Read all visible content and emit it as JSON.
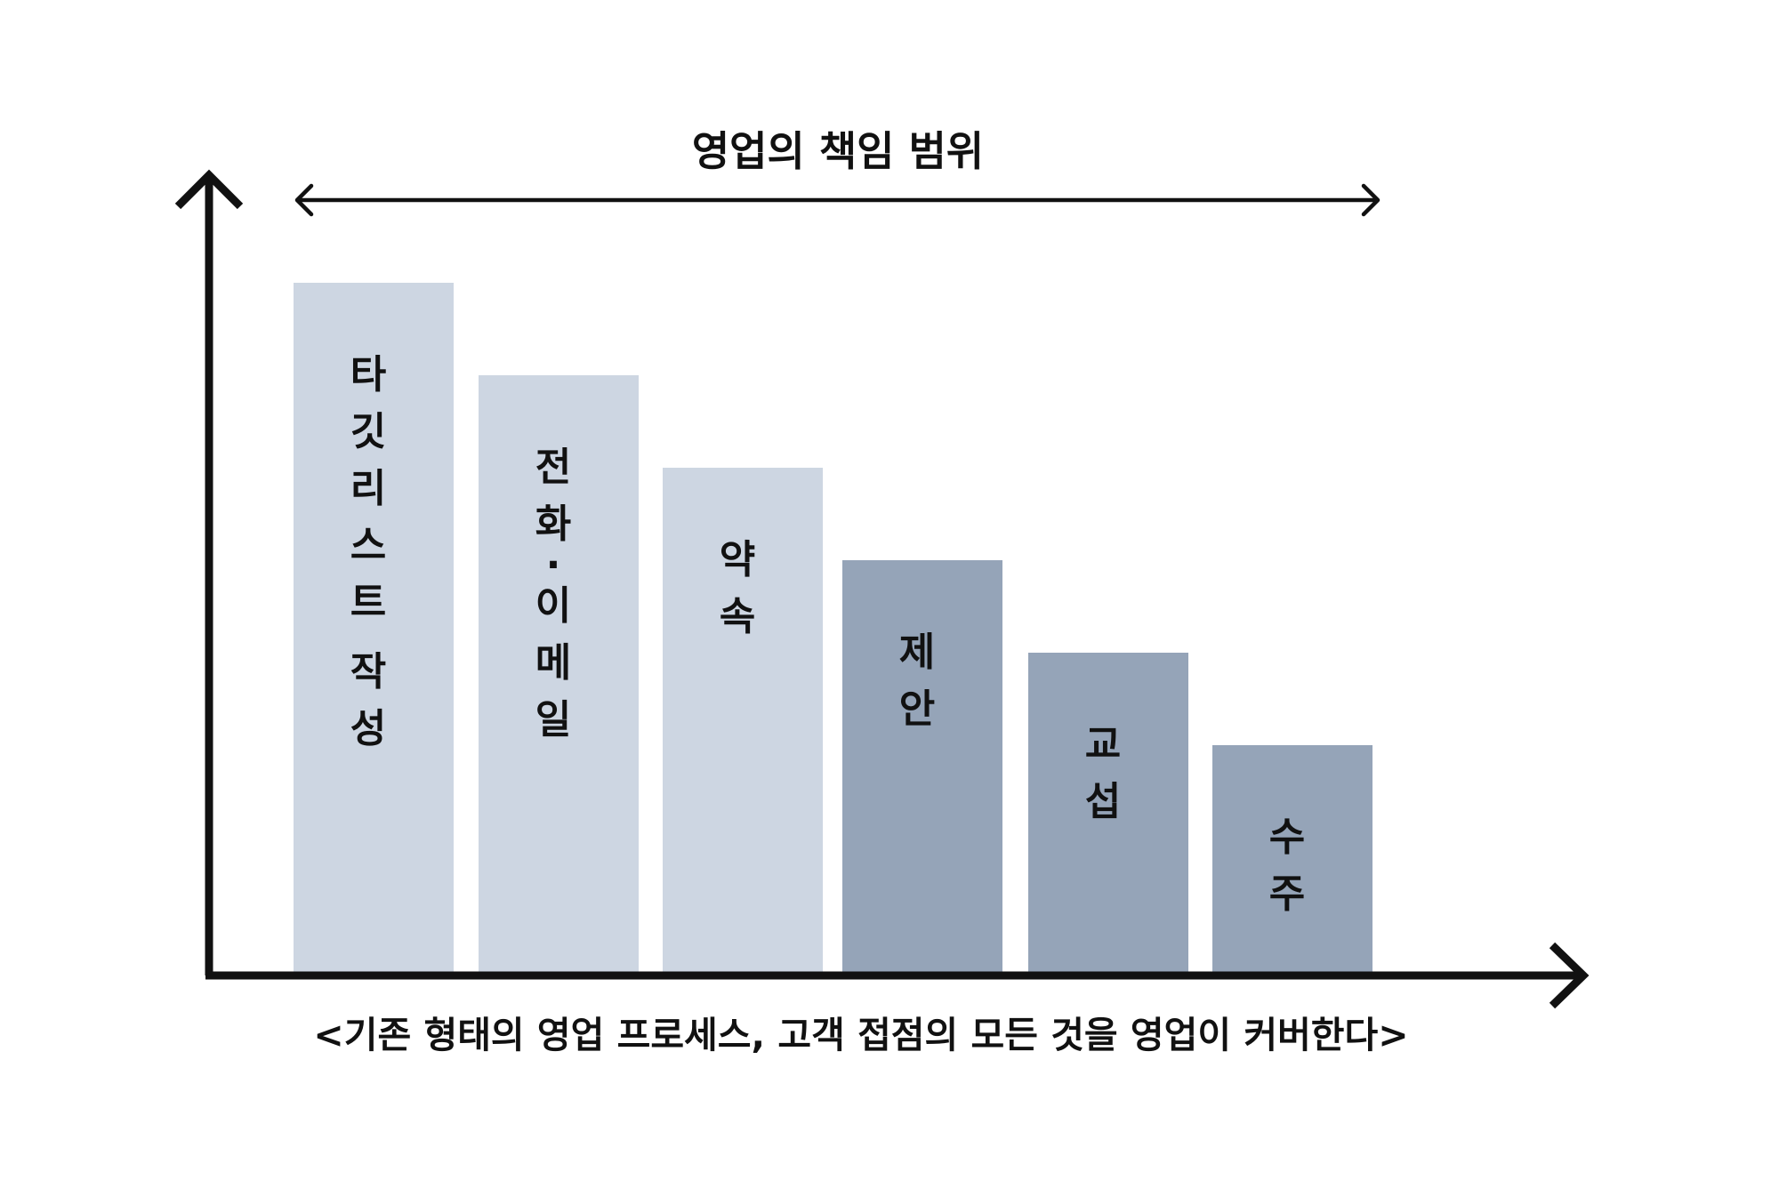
{
  "title": "영업의 책임 범위",
  "caption": "<기존 형태의 영업 프로세스, 고객 접점의 모든 것을 영업이 커버한다>",
  "colors": {
    "light_bar": "#cdd6e2",
    "dark_bar": "#95a4b8",
    "axis": "#111111",
    "text": "#111111"
  },
  "stages": [
    {
      "label": "타깃리스트 작성",
      "level": 6,
      "tone": "light"
    },
    {
      "label": "전화·이메일",
      "level": 5,
      "tone": "light"
    },
    {
      "label": "약속",
      "level": 4,
      "tone": "light"
    },
    {
      "label": "제안",
      "level": 3,
      "tone": "dark"
    },
    {
      "label": "교섭",
      "level": 2,
      "tone": "dark"
    },
    {
      "label": "수주",
      "level": 1,
      "tone": "dark"
    }
  ]
}
